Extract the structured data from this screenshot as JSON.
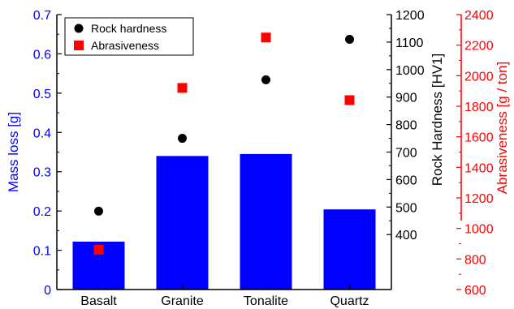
{
  "chart_data": {
    "type": "bar",
    "categories": [
      "Basalt",
      "Granite",
      "Tonalite",
      "Quartz"
    ],
    "series": [
      {
        "name": "Mass loss",
        "kind": "bar",
        "axis": "left",
        "values": [
          0.122,
          0.34,
          0.345,
          0.204
        ]
      },
      {
        "name": "Rock hardness",
        "kind": "scatter",
        "marker": "circle",
        "axis": "right1",
        "values": [
          485,
          750,
          963,
          1110
        ]
      },
      {
        "name": "Abrasiveness",
        "kind": "scatter",
        "marker": "square",
        "axis": "right2",
        "values": [
          860,
          1920,
          2250,
          1840
        ]
      }
    ],
    "axes": {
      "left": {
        "label": "Mass loss [g]",
        "ylim": [
          0,
          0.7
        ],
        "ticks": [
          "0",
          "0.1",
          "0.2",
          "0.3",
          "0.4",
          "0.5",
          "0.6",
          "0.7"
        ],
        "color": "#0000ff"
      },
      "right1": {
        "label": "Rock Hardness [HV1]",
        "ylim": [
          200,
          1200
        ],
        "ticks": [
          "400",
          "500",
          "600",
          "700",
          "800",
          "900",
          "1000",
          "1100",
          "1200"
        ],
        "color": "#000000"
      },
      "right2": {
        "label": "Abrasiveness [g / ton]",
        "ylim": [
          600,
          2400
        ],
        "ticks": [
          "600",
          "800",
          "1000",
          "1200",
          "1400",
          "1600",
          "1800",
          "2000",
          "2200",
          "2400"
        ],
        "color": "#ff0000"
      }
    },
    "legend": {
      "position": "top-left",
      "entries": [
        "Rock hardness",
        "Abrasiveness"
      ]
    },
    "colors": {
      "bar": "#0000ff",
      "hardness": "#000000",
      "abrasiveness": "#ff0000"
    },
    "grid": false
  }
}
